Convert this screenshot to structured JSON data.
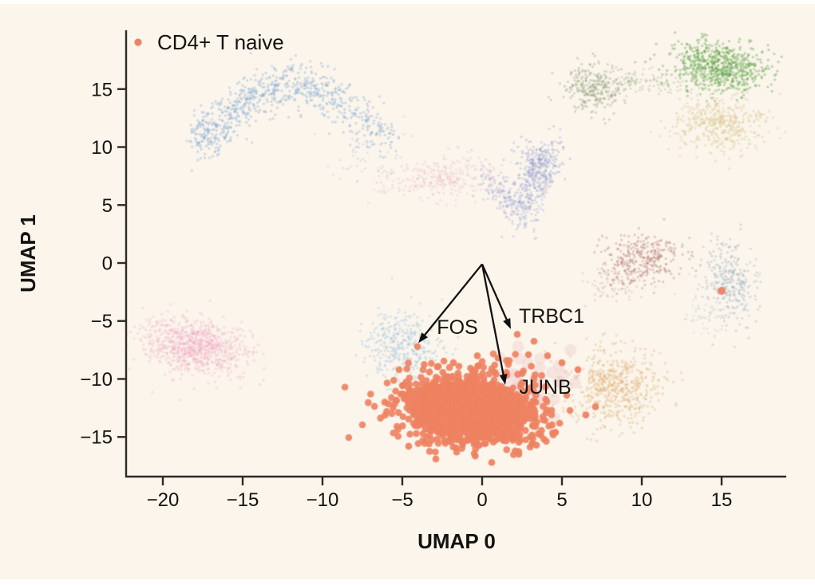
{
  "chart_data": {
    "type": "scatter",
    "title": "",
    "xlabel": "UMAP 0",
    "ylabel": "UMAP 1",
    "grid": false,
    "background_color": "#fbf5ec",
    "highlight_color": "#ee8262",
    "axis_color": "#2e2a26",
    "text_color": "#14120f",
    "legend": [
      {
        "label": "CD4+ T naive",
        "color": "#ee8262",
        "position": "upper-left"
      }
    ],
    "x_range": [
      -22.3,
      19.05
    ],
    "y_range": [
      -18.42,
      20.07
    ],
    "x_ticks": [
      {
        "v": -20,
        "label": "−20"
      },
      {
        "v": -15,
        "label": "−15"
      },
      {
        "v": -10,
        "label": "−10"
      },
      {
        "v": -5,
        "label": "−5"
      },
      {
        "v": 0,
        "label": "0"
      },
      {
        "v": 5,
        "label": "5"
      },
      {
        "v": 10,
        "label": "10"
      },
      {
        "v": 15,
        "label": "15"
      }
    ],
    "y_ticks": [
      {
        "v": 15,
        "label": "15"
      },
      {
        "v": 10,
        "label": "10"
      },
      {
        "v": 5,
        "label": "5"
      },
      {
        "v": 0,
        "label": "0"
      },
      {
        "v": -5,
        "label": "−5"
      },
      {
        "v": -10,
        "label": "−10"
      },
      {
        "v": -15,
        "label": "−15"
      }
    ],
    "annotations": {
      "arrow_origin": [
        0,
        -0.1
      ],
      "genes": [
        {
          "label": "FOS",
          "tip": [
            -4.0,
            -6.9
          ],
          "label_pos": [
            -1.55,
            -5.5
          ]
        },
        {
          "label": "TRBC1",
          "tip": [
            1.8,
            -5.7
          ],
          "label_pos": [
            4.35,
            -4.55
          ]
        },
        {
          "label": "JUNB",
          "tip": [
            1.45,
            -10.5
          ],
          "label_pos": [
            3.95,
            -10.65
          ]
        }
      ]
    },
    "clusters": [
      {
        "name": "bg-blue-arc",
        "type": "arc",
        "x0": -17.8,
        "x1": -5.8,
        "ybase": 10.6,
        "h": 4.6,
        "sx": 0.45,
        "sy": 1.0,
        "bias": 1.35,
        "n": 780,
        "r": 1.7,
        "color": "#7ea6cf",
        "opacity": 0.34
      },
      {
        "name": "bg-blue-arc-tail",
        "type": "gauss",
        "cx": -7.0,
        "cy": 9.2,
        "rx": 1.2,
        "ry": 1.2,
        "rot": 0,
        "n": 60,
        "r": 1.5,
        "color": "#7ea6cf",
        "opacity": 0.2
      },
      {
        "name": "bg-olive",
        "type": "gauss",
        "cx": 7.0,
        "cy": 15.1,
        "rx": 0.9,
        "ry": 1.1,
        "rot": 0,
        "n": 260,
        "r": 1.6,
        "color": "#8a9a74",
        "opacity": 0.34
      },
      {
        "name": "bg-olive-trail",
        "type": "gauss",
        "cx": 9.8,
        "cy": 15.6,
        "rx": 1.8,
        "ry": 0.55,
        "rot": -5,
        "n": 120,
        "r": 1.5,
        "color": "#8a9a74",
        "opacity": 0.25
      },
      {
        "name": "bg-green",
        "type": "gauss",
        "cx": 14.9,
        "cy": 16.8,
        "rx": 1.6,
        "ry": 1.05,
        "rot": -12,
        "n": 650,
        "r": 1.7,
        "color": "#5fa348",
        "opacity": 0.38
      },
      {
        "name": "bg-khaki",
        "type": "gauss",
        "cx": 14.9,
        "cy": 12.0,
        "rx": 1.5,
        "ry": 1.2,
        "rot": 0,
        "n": 420,
        "r": 1.7,
        "color": "#d3c182",
        "opacity": 0.3
      },
      {
        "name": "bg-pink-mid",
        "type": "gauss",
        "cx": -2.6,
        "cy": 7.3,
        "rx": 1.9,
        "ry": 0.95,
        "rot": 5,
        "n": 280,
        "r": 1.6,
        "color": "#e8a8bc",
        "opacity": 0.24
      },
      {
        "name": "bg-violet-arm1",
        "type": "gauss",
        "cx": 1.55,
        "cy": 5.6,
        "rx": 0.5,
        "ry": 1.6,
        "rot": 31,
        "n": 190,
        "r": 1.6,
        "color": "#9ea8d4",
        "opacity": 0.32
      },
      {
        "name": "bg-violet-arm2",
        "type": "gauss",
        "cx": 3.2,
        "cy": 6.9,
        "rx": 0.55,
        "ry": 1.7,
        "rot": -14,
        "n": 280,
        "r": 1.6,
        "color": "#9ea8d4",
        "opacity": 0.34
      },
      {
        "name": "bg-violet-head",
        "type": "gauss",
        "cx": 3.6,
        "cy": 8.6,
        "rx": 0.75,
        "ry": 0.9,
        "rot": 0,
        "n": 160,
        "r": 1.6,
        "color": "#96a2d2",
        "opacity": 0.38
      },
      {
        "name": "bg-maroon",
        "type": "gauss",
        "cx": 9.9,
        "cy": 0.4,
        "rx": 1.3,
        "ry": 1.1,
        "rot": 20,
        "n": 330,
        "r": 1.6,
        "color": "#b4756b",
        "opacity": 0.34
      },
      {
        "name": "bg-maroon-tail",
        "type": "gauss",
        "cx": 8.2,
        "cy": -1.8,
        "rx": 0.9,
        "ry": 0.9,
        "rot": 0,
        "n": 70,
        "r": 1.5,
        "color": "#b4756b",
        "opacity": 0.2
      },
      {
        "name": "bg-bluegrey",
        "type": "gauss",
        "cx": 15.6,
        "cy": -1.5,
        "rx": 0.85,
        "ry": 1.7,
        "rot": 8,
        "n": 290,
        "r": 1.6,
        "color": "#9db3c4",
        "opacity": 0.36
      },
      {
        "name": "bg-bluegrey-tail",
        "type": "gauss",
        "cx": 14.2,
        "cy": -4.6,
        "rx": 0.8,
        "ry": 1.0,
        "rot": 0,
        "n": 60,
        "r": 1.5,
        "color": "#9db3c4",
        "opacity": 0.22
      },
      {
        "name": "bg-pink-left",
        "type": "gauss",
        "cx": -18.0,
        "cy": -7.2,
        "rx": 1.6,
        "ry": 1.15,
        "rot": -22,
        "n": 850,
        "r": 1.7,
        "color": "#f0a8c2",
        "opacity": 0.3
      },
      {
        "name": "bg-lightblue",
        "type": "gauss",
        "cx": -5.0,
        "cy": -7.2,
        "rx": 1.25,
        "ry": 1.5,
        "rot": 0,
        "n": 380,
        "r": 1.6,
        "color": "#a4c4e0",
        "opacity": 0.38
      },
      {
        "name": "bg-tan",
        "type": "gauss",
        "cx": 8.3,
        "cy": -10.6,
        "rx": 1.5,
        "ry": 1.7,
        "rot": 0,
        "n": 560,
        "r": 1.7,
        "color": "#dfb173",
        "opacity": 0.34
      },
      {
        "name": "bg-pink-faded-big",
        "type": "gauss",
        "cx": 3.4,
        "cy": -10.6,
        "rx": 1.5,
        "ry": 1.6,
        "rot": 0,
        "n": 30,
        "r": 7.5,
        "color": "#eecaca",
        "opacity": 0.38
      },
      {
        "name": "cd4-naive-main",
        "type": "gauss",
        "cx": -0.75,
        "cy": -12.6,
        "rx": 1.85,
        "ry": 1.35,
        "rot": -8,
        "n": 1500,
        "r": 4.3,
        "color": "#ee8262",
        "opacity": 0.92
      },
      {
        "name": "cd4-naive-halo",
        "type": "gauss",
        "cx": -0.5,
        "cy": -12.3,
        "rx": 2.9,
        "ry": 2.0,
        "rot": -8,
        "n": 110,
        "r": 4.3,
        "color": "#ee8262",
        "opacity": 0.92
      }
    ],
    "outlier_points": [
      [
        15.0,
        -2.4,
        5.0
      ],
      [
        -4.05,
        -7.2
      ],
      [
        2.2,
        -6.15
      ],
      [
        3.25,
        -6.75
      ],
      [
        4.1,
        -8.0
      ],
      [
        5.0,
        -8.6
      ],
      [
        6.0,
        -9.2
      ],
      [
        7.1,
        -12.4
      ],
      [
        6.5,
        -13.1
      ],
      [
        5.3,
        -11.4
      ],
      [
        -5.2,
        -9.2
      ],
      [
        -6.1,
        -12.0
      ],
      [
        -4.6,
        -15.8
      ],
      [
        -2.9,
        -16.9
      ],
      [
        0.6,
        -17.2
      ],
      [
        2.3,
        -16.5
      ],
      [
        3.4,
        -15.7
      ],
      [
        4.6,
        -14.6
      ],
      [
        2.9,
        -7.9
      ],
      [
        1.0,
        -8.2
      ],
      [
        -0.3,
        -8.0
      ],
      [
        -1.8,
        -8.6
      ],
      [
        -3.3,
        -9.4
      ]
    ]
  }
}
